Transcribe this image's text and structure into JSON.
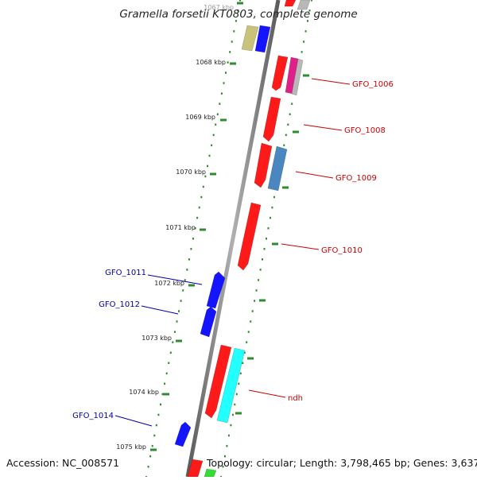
{
  "title": "Gramella forsetii KT0803, complete genome",
  "footer": {
    "accession": "Accession: NC_008571",
    "summary": "Topology: circular; Length: 3,798,465 bp; Genes: 3,637"
  },
  "colors": {
    "backbone": "#8c8c8c",
    "tick": "#2e8b2e",
    "label_red": "#cc0000",
    "label_blue": "#0000aa",
    "gene_red": "#ff1a1a",
    "gene_blue": "#1414ff",
    "gene_olive": "#c8c27a",
    "gene_magenta": "#e0208a",
    "gene_gray": "#b8b8b8",
    "gene_steel": "#4a86c0",
    "gene_cyan": "#22ffff",
    "gene_green": "#33dd33"
  },
  "axis": {
    "unit": "kbp",
    "ticks": [
      "1067 kbp",
      "1068 kbp",
      "1069 kbp",
      "1070 kbp",
      "1071 kbp",
      "1072 kbp",
      "1073 kbp",
      "1074 kbp",
      "1075 kbp"
    ]
  },
  "gene_labels": [
    {
      "text": "GFO_1006",
      "color": "red"
    },
    {
      "text": "GFO_1008",
      "color": "red"
    },
    {
      "text": "GFO_1009",
      "color": "red"
    },
    {
      "text": "GFO_1010",
      "color": "red"
    },
    {
      "text": "ndh",
      "color": "red"
    },
    {
      "text": "GFO_1011",
      "color": "blue"
    },
    {
      "text": "GFO_1012",
      "color": "blue"
    },
    {
      "text": "GFO_1014",
      "color": "blue"
    }
  ]
}
